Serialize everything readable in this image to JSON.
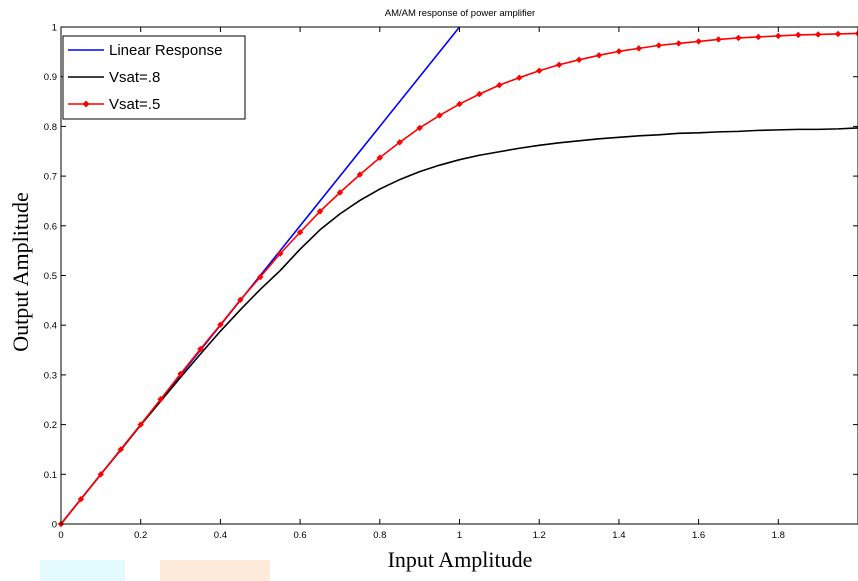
{
  "chart_data": {
    "type": "line",
    "title": "AM/AM response of power amplifier",
    "xlabel": "Input Amplitude",
    "ylabel": "Output Amplitude",
    "xlim": [
      0,
      2
    ],
    "ylim": [
      0,
      1
    ],
    "xticks": [
      0,
      0.2,
      0.4,
      0.6,
      0.8,
      1,
      1.2,
      1.4,
      1.6,
      1.8
    ],
    "xtick_labels": [
      "0",
      "0.2",
      "0.4",
      "0.6",
      "0.8",
      "1",
      "1.2",
      "1.4",
      "1.6",
      "1.8"
    ],
    "yticks": [
      0,
      0.1,
      0.2,
      0.3,
      0.4,
      0.5,
      0.6,
      0.7,
      0.8,
      0.9,
      1
    ],
    "ytick_labels": [
      "0",
      "0.1",
      "0.2",
      "0.3",
      "0.4",
      "0.5",
      "0.6",
      "0.7",
      "0.8",
      "0.9",
      "1"
    ],
    "grid": false,
    "legend_position": "top-left",
    "series": [
      {
        "name": "Linear Response",
        "color": "#0000ff",
        "marker": "none",
        "x": [
          0,
          1
        ],
        "y": [
          0,
          1
        ]
      },
      {
        "name": "Vsat=.8",
        "color": "#000000",
        "marker": "none",
        "x": [
          0,
          0.05,
          0.1,
          0.15,
          0.2,
          0.25,
          0.3,
          0.35,
          0.4,
          0.45,
          0.5,
          0.55,
          0.6,
          0.65,
          0.7,
          0.75,
          0.8,
          0.85,
          0.9,
          0.95,
          1.0,
          1.05,
          1.1,
          1.15,
          1.2,
          1.25,
          1.3,
          1.35,
          1.4,
          1.45,
          1.5,
          1.55,
          1.6,
          1.65,
          1.7,
          1.75,
          1.8,
          1.85,
          1.9,
          1.95,
          2.0
        ],
        "y": [
          0,
          0.05,
          0.1,
          0.149,
          0.199,
          0.247,
          0.295,
          0.342,
          0.388,
          0.431,
          0.472,
          0.51,
          0.553,
          0.592,
          0.624,
          0.651,
          0.674,
          0.693,
          0.709,
          0.722,
          0.733,
          0.742,
          0.749,
          0.756,
          0.762,
          0.767,
          0.771,
          0.775,
          0.778,
          0.781,
          0.783,
          0.786,
          0.787,
          0.789,
          0.79,
          0.792,
          0.793,
          0.794,
          0.794,
          0.795,
          0.797
        ]
      },
      {
        "name": "Vsat=.5",
        "color": "#ff0000",
        "marker": "diamond",
        "x": [
          0,
          0.05,
          0.1,
          0.15,
          0.2,
          0.25,
          0.3,
          0.35,
          0.4,
          0.45,
          0.5,
          0.55,
          0.6,
          0.65,
          0.7,
          0.75,
          0.8,
          0.85,
          0.9,
          0.95,
          1.0,
          1.05,
          1.1,
          1.15,
          1.2,
          1.25,
          1.3,
          1.35,
          1.4,
          1.45,
          1.5,
          1.55,
          1.6,
          1.65,
          1.7,
          1.75,
          1.8,
          1.85,
          1.9,
          1.95,
          2.0
        ],
        "y": [
          0,
          0.05,
          0.1,
          0.15,
          0.2,
          0.251,
          0.302,
          0.352,
          0.401,
          0.451,
          0.497,
          0.544,
          0.587,
          0.629,
          0.667,
          0.703,
          0.737,
          0.768,
          0.797,
          0.822,
          0.845,
          0.865,
          0.883,
          0.898,
          0.912,
          0.924,
          0.934,
          0.943,
          0.951,
          0.957,
          0.963,
          0.967,
          0.971,
          0.975,
          0.978,
          0.98,
          0.982,
          0.984,
          0.985,
          0.986,
          0.987
        ]
      }
    ]
  }
}
